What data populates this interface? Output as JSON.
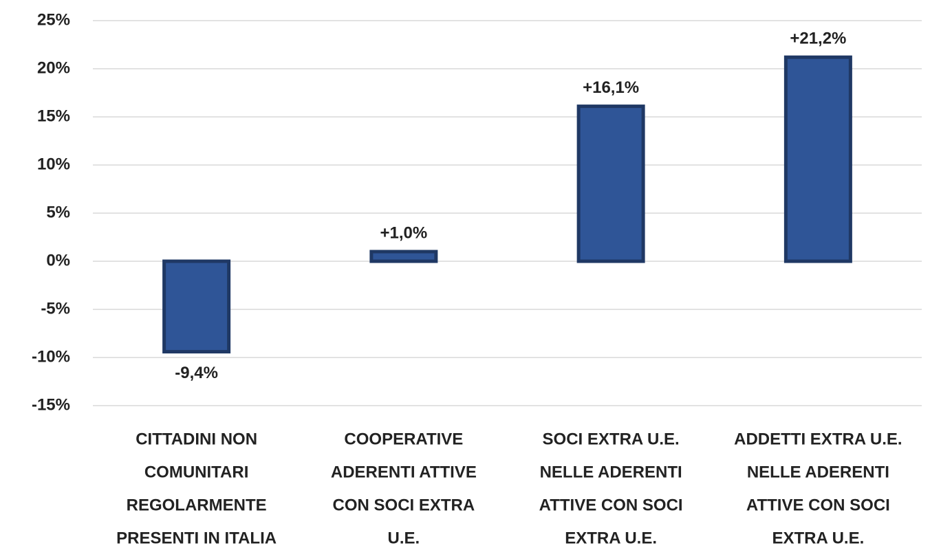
{
  "chart_data": {
    "type": "bar",
    "categories": [
      [
        "CITTADINI NON",
        "COMUNITARI",
        "REGOLARMENTE",
        "PRESENTI IN ITALIA"
      ],
      [
        "COOPERATIVE",
        "ADERENTI ATTIVE",
        "CON SOCI EXTRA",
        "U.E."
      ],
      [
        "SOCI EXTRA U.E.",
        "NELLE ADERENTI",
        "ATTIVE CON SOCI",
        "EXTRA U.E."
      ],
      [
        "ADDETTI EXTRA U.E.",
        "NELLE ADERENTI",
        "ATTIVE CON SOCI",
        "EXTRA U.E."
      ]
    ],
    "values": [
      -9.4,
      1.0,
      16.1,
      21.2
    ],
    "value_labels": [
      "-9,4%",
      "+1,0%",
      "+16,1%",
      "+21,2%"
    ],
    "color": "#2f5597",
    "ylim": [
      -15,
      25
    ],
    "yticks": [
      {
        "value": -15,
        "label": "-15%"
      },
      {
        "value": -10,
        "label": "-10%"
      },
      {
        "value": -5,
        "label": "-5%"
      },
      {
        "value": 0,
        "label": "0%"
      },
      {
        "value": 5,
        "label": "5%"
      },
      {
        "value": 10,
        "label": "10%"
      },
      {
        "value": 15,
        "label": "15%"
      },
      {
        "value": 20,
        "label": "20%"
      },
      {
        "value": 25,
        "label": "25%"
      }
    ],
    "grid": true
  }
}
